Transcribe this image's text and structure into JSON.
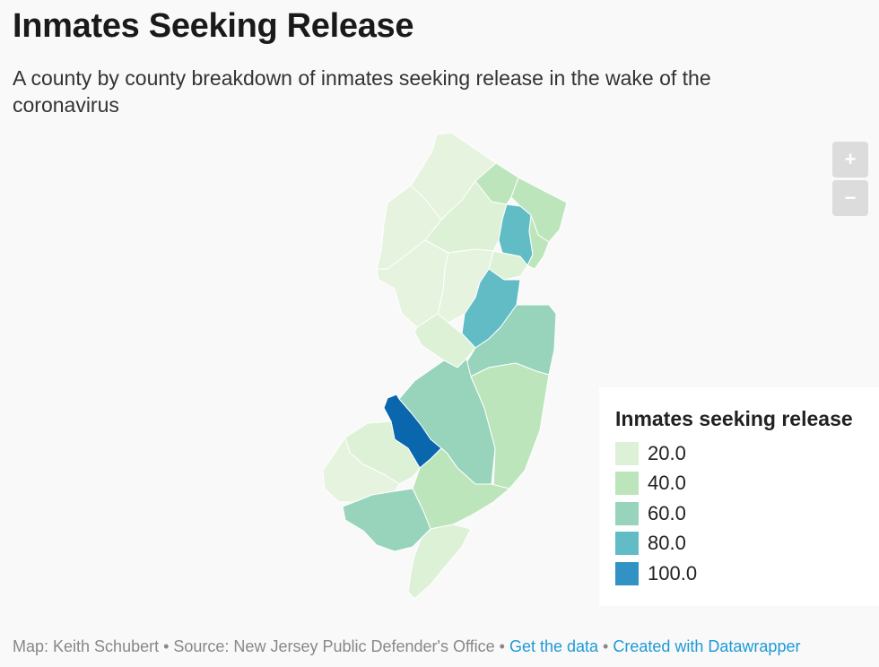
{
  "header": {
    "title": "Inmates Seeking Release",
    "subtitle": "A county by county breakdown of inmates seeking release in the wake of the coronavirus"
  },
  "controls": {
    "zoom_in_label": "+",
    "zoom_out_label": "−"
  },
  "legend": {
    "title": "Inmates seeking release",
    "items": [
      {
        "label": "20.0",
        "color": "#dcf1d6"
      },
      {
        "label": "40.0",
        "color": "#bde5bc"
      },
      {
        "label": "60.0",
        "color": "#97d4bb"
      },
      {
        "label": "80.0",
        "color": "#62bcc6"
      },
      {
        "label": "100.0",
        "color": "#3192c3"
      }
    ]
  },
  "map_colors": {
    "lightest": "#e6f3df",
    "light": "#dcf1d6",
    "light_green": "#bde5bc",
    "mid": "#97d4bb",
    "teal": "#62bcc6",
    "blue": "#3192c3",
    "dark_blue": "#0a66ad"
  },
  "footer": {
    "credit": "Map: Keith Schubert • Source: New Jersey Public Defender's Office • ",
    "get_data": "Get the data",
    "separator": " • ",
    "created_with": "Created with Datawrapper"
  }
}
